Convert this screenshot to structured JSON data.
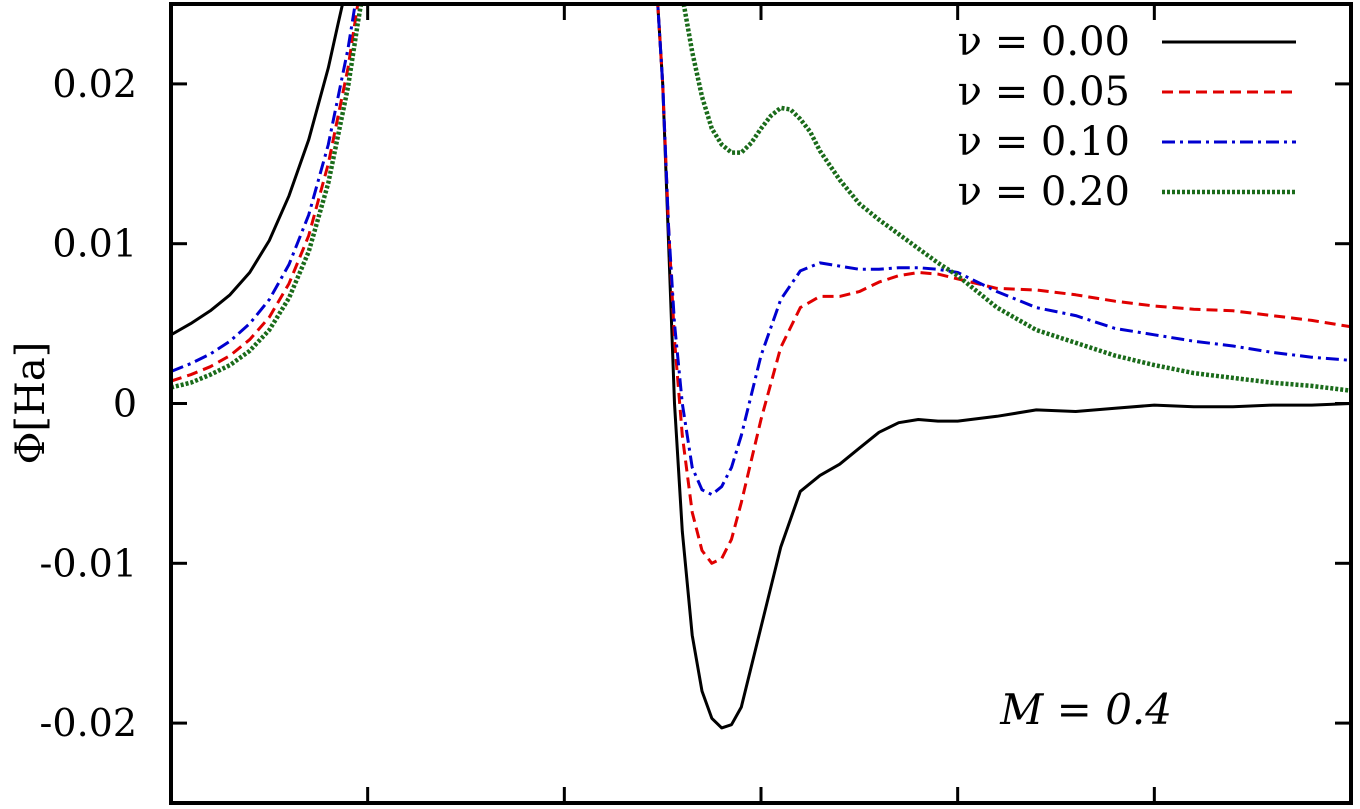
{
  "chart_data": {
    "type": "line",
    "title": "",
    "xlabel": "",
    "ylabel": "Φ[Ha]",
    "xlim": [
      0,
      6
    ],
    "ylim": [
      -0.025,
      0.025
    ],
    "yticks": [
      -0.02,
      -0.01,
      0,
      0.01,
      0.02
    ],
    "ytick_labels": [
      "-0.02",
      "-0.01",
      "0",
      "0.01",
      "0.02"
    ],
    "xticks": [
      1,
      2,
      3,
      4,
      5
    ],
    "xtick_labels": [
      "",
      "",
      "",
      "",
      ""
    ],
    "grid": false,
    "legend_position": "top-right",
    "annotation": "M = 0.4",
    "series": [
      {
        "name": "ν = 0.00",
        "color": "#000000",
        "dash": "solid",
        "x": [
          0.0,
          0.1,
          0.2,
          0.3,
          0.4,
          0.5,
          0.6,
          0.7,
          0.8,
          0.85,
          0.9,
          0.95,
          0.98,
          2.45,
          2.5,
          2.53,
          2.56,
          2.6,
          2.65,
          2.7,
          2.75,
          2.8,
          2.85,
          2.9,
          3.0,
          3.1,
          3.2,
          3.3,
          3.4,
          3.5,
          3.6,
          3.7,
          3.8,
          3.9,
          4.0,
          4.2,
          4.4,
          4.6,
          4.8,
          5.0,
          5.2,
          5.4,
          5.6,
          5.8,
          6.0
        ],
        "y": [
          0.0043,
          0.005,
          0.0058,
          0.0068,
          0.0082,
          0.0102,
          0.013,
          0.0165,
          0.021,
          0.0238,
          0.0265,
          0.0285,
          0.03,
          0.03,
          0.02,
          0.01,
          0.0,
          -0.008,
          -0.0145,
          -0.018,
          -0.0197,
          -0.0203,
          -0.0201,
          -0.019,
          -0.014,
          -0.009,
          -0.0055,
          -0.0045,
          -0.0038,
          -0.0028,
          -0.0018,
          -0.0012,
          -0.001,
          -0.0011,
          -0.0011,
          -0.0008,
          -0.0004,
          -0.0005,
          -0.0003,
          -0.0001,
          -0.0002,
          -0.0002,
          -0.0001,
          -0.0001,
          0.0
        ]
      },
      {
        "name": "ν = 0.05",
        "color": "#e00000",
        "dash": "dashed",
        "x": [
          0.0,
          0.1,
          0.2,
          0.3,
          0.4,
          0.5,
          0.6,
          0.7,
          0.8,
          0.9,
          0.95,
          1.0,
          1.05,
          1.08,
          2.45,
          2.5,
          2.53,
          2.56,
          2.6,
          2.65,
          2.7,
          2.75,
          2.8,
          2.85,
          2.9,
          3.0,
          3.1,
          3.2,
          3.3,
          3.4,
          3.5,
          3.6,
          3.7,
          3.8,
          3.9,
          4.0,
          4.2,
          4.4,
          4.6,
          4.8,
          5.0,
          5.2,
          5.4,
          5.6,
          5.8,
          6.0
        ],
        "y": [
          0.0014,
          0.0018,
          0.0023,
          0.003,
          0.004,
          0.0054,
          0.0075,
          0.0105,
          0.015,
          0.021,
          0.025,
          0.0285,
          0.03,
          0.03,
          0.03,
          0.02,
          0.011,
          0.004,
          -0.002,
          -0.0068,
          -0.0092,
          -0.01,
          -0.0097,
          -0.0085,
          -0.0062,
          -0.001,
          0.0035,
          0.006,
          0.0067,
          0.0067,
          0.007,
          0.0076,
          0.008,
          0.0082,
          0.0081,
          0.0078,
          0.0072,
          0.0071,
          0.0068,
          0.0064,
          0.0061,
          0.0059,
          0.0058,
          0.0055,
          0.0052,
          0.0048
        ]
      },
      {
        "name": "ν = 0.10",
        "color": "#0000d0",
        "dash": "dashdot",
        "x": [
          0.0,
          0.1,
          0.2,
          0.3,
          0.4,
          0.5,
          0.6,
          0.7,
          0.8,
          0.9,
          0.95,
          1.0,
          1.05,
          1.08,
          2.45,
          2.5,
          2.53,
          2.56,
          2.6,
          2.65,
          2.7,
          2.75,
          2.8,
          2.85,
          2.9,
          3.0,
          3.1,
          3.2,
          3.3,
          3.4,
          3.5,
          3.6,
          3.7,
          3.8,
          3.9,
          4.0,
          4.2,
          4.4,
          4.6,
          4.8,
          5.0,
          5.2,
          5.4,
          5.6,
          5.8,
          6.0
        ],
        "y": [
          0.002,
          0.0025,
          0.0031,
          0.0039,
          0.005,
          0.0065,
          0.0087,
          0.0118,
          0.0162,
          0.0222,
          0.026,
          0.029,
          0.03,
          0.03,
          0.03,
          0.02,
          0.011,
          0.005,
          0.0,
          -0.004,
          -0.0054,
          -0.0057,
          -0.0052,
          -0.004,
          -0.002,
          0.003,
          0.0065,
          0.0083,
          0.0088,
          0.0086,
          0.0084,
          0.0084,
          0.0085,
          0.0085,
          0.0084,
          0.0082,
          0.007,
          0.006,
          0.0055,
          0.0047,
          0.0043,
          0.0039,
          0.0036,
          0.0032,
          0.0029,
          0.0027
        ]
      },
      {
        "name": "ν = 0.20",
        "color": "#1a6b1a",
        "dash": "dotted",
        "x": [
          0.0,
          0.1,
          0.2,
          0.3,
          0.4,
          0.5,
          0.6,
          0.7,
          0.8,
          0.9,
          0.95,
          1.0,
          1.05,
          1.1,
          2.55,
          2.6,
          2.65,
          2.7,
          2.75,
          2.8,
          2.85,
          2.9,
          2.95,
          3.0,
          3.05,
          3.1,
          3.15,
          3.2,
          3.25,
          3.3,
          3.4,
          3.5,
          3.6,
          3.7,
          3.8,
          3.9,
          4.0,
          4.2,
          4.4,
          4.6,
          4.8,
          5.0,
          5.2,
          5.4,
          5.6,
          5.8,
          6.0
        ],
        "y": [
          0.001,
          0.0013,
          0.0018,
          0.0024,
          0.0033,
          0.0046,
          0.0066,
          0.0095,
          0.0138,
          0.0198,
          0.0238,
          0.0275,
          0.0295,
          0.03,
          0.03,
          0.0255,
          0.022,
          0.0192,
          0.0172,
          0.0162,
          0.0157,
          0.0157,
          0.0163,
          0.0172,
          0.018,
          0.0185,
          0.0184,
          0.0178,
          0.017,
          0.0158,
          0.014,
          0.0125,
          0.0115,
          0.0106,
          0.0097,
          0.0088,
          0.008,
          0.006,
          0.0046,
          0.0038,
          0.003,
          0.0024,
          0.0019,
          0.0016,
          0.0013,
          0.0011,
          0.0008
        ]
      }
    ]
  }
}
